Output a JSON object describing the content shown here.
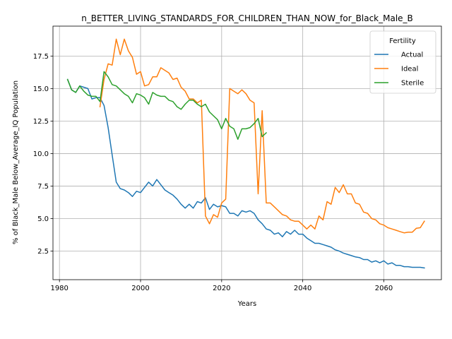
{
  "chart_data": {
    "type": "line",
    "title": "n_BETTER_LIVING_STANDARDS_FOR_CHILDREN_THAN_NOW_for_Black_Male_B",
    "xlabel": "Years",
    "ylabel": "% of Black_Male Below_Average_IQ Population",
    "xlim": [
      1978.4,
      1973.6
    ],
    "ylim": [
      0.3,
      19.8
    ],
    "x_ticks": [
      1980,
      2000,
      2020,
      2040,
      2060
    ],
    "x_tick_labels": [
      "1980",
      "2000",
      "2020",
      "2040",
      "2060"
    ],
    "y_ticks": [
      2.5,
      5.0,
      7.5,
      10.0,
      12.5,
      15.0,
      17.5
    ],
    "y_tick_labels": [
      "2.5",
      "5.0",
      "7.5",
      "10.0",
      "12.5",
      "15.0",
      "17.5"
    ],
    "grid": true,
    "legend": {
      "title": "Fertility",
      "placement": "top-right"
    },
    "series": [
      {
        "name": "Actual",
        "color": "#1f77b4",
        "x": [
          1982,
          1983,
          1984,
          1985,
          1986,
          1987,
          1988,
          1989,
          1990,
          1991,
          1992,
          1993,
          1994,
          1995,
          1996,
          1997,
          1998,
          1999,
          2000,
          2001,
          2002,
          2003,
          2004,
          2005,
          2006,
          2007,
          2008,
          2009,
          2010,
          2011,
          2012,
          2013,
          2014,
          2015,
          2016,
          2017,
          2018,
          2019,
          2020,
          2021,
          2022,
          2023,
          2024,
          2025,
          2026,
          2027,
          2028,
          2029,
          2030,
          2031,
          2032,
          2033,
          2034,
          2035,
          2036,
          2037,
          2038,
          2039,
          2040,
          2041,
          2042,
          2043,
          2044,
          2045,
          2046,
          2047,
          2048,
          2049,
          2050,
          2051,
          2052,
          2053,
          2054,
          2055,
          2056,
          2057,
          2058,
          2059,
          2060,
          2061,
          2062,
          2063,
          2064,
          2065,
          2066,
          2067,
          2068,
          2069,
          2070
        ],
        "y": [
          15.7,
          14.9,
          14.7,
          15.2,
          15.1,
          15.0,
          14.2,
          14.3,
          14.3,
          13.7,
          12.0,
          9.9,
          7.8,
          7.3,
          7.2,
          7.0,
          6.7,
          7.1,
          7.0,
          7.4,
          7.8,
          7.5,
          8.0,
          7.6,
          7.2,
          7.0,
          6.8,
          6.5,
          6.1,
          5.8,
          6.1,
          5.8,
          6.3,
          6.2,
          6.6,
          5.7,
          6.1,
          5.9,
          6.0,
          5.9,
          5.4,
          5.4,
          5.2,
          5.6,
          5.5,
          5.6,
          5.4,
          4.9,
          4.6,
          4.2,
          4.1,
          3.8,
          3.9,
          3.6,
          4.0,
          3.8,
          4.1,
          3.8,
          3.8,
          3.5,
          3.3,
          3.1,
          3.1,
          3.0,
          2.9,
          2.8,
          2.6,
          2.5,
          2.35,
          2.25,
          2.15,
          2.05,
          2.0,
          1.85,
          1.85,
          1.65,
          1.75,
          1.6,
          1.75,
          1.5,
          1.6,
          1.4,
          1.4,
          1.3,
          1.3,
          1.25,
          1.25,
          1.25,
          1.2
        ]
      },
      {
        "name": "Ideal",
        "color": "#ff7f0e",
        "x": [
          1990,
          1991,
          1992,
          1993,
          1994,
          1995,
          1996,
          1997,
          1998,
          1999,
          2000,
          2001,
          2002,
          2003,
          2004,
          2005,
          2006,
          2007,
          2008,
          2009,
          2010,
          2011,
          2012,
          2013,
          2014,
          2015,
          2016,
          2017,
          2018,
          2019,
          2020,
          2021,
          2022,
          2023,
          2024,
          2025,
          2026,
          2027,
          2028,
          2029,
          2030,
          2031,
          2032,
          2033,
          2034,
          2035,
          2036,
          2037,
          2038,
          2039,
          2040,
          2041,
          2042,
          2043,
          2044,
          2045,
          2046,
          2047,
          2048,
          2049,
          2050,
          2051,
          2052,
          2053,
          2054,
          2055,
          2056,
          2057,
          2058,
          2059,
          2060,
          2061,
          2062,
          2063,
          2064,
          2065,
          2066,
          2067,
          2068,
          2069,
          2070
        ],
        "y": [
          13.6,
          15.7,
          16.9,
          16.8,
          18.8,
          17.6,
          18.8,
          17.9,
          17.4,
          16.1,
          16.3,
          15.2,
          15.3,
          15.9,
          15.9,
          16.6,
          16.4,
          16.2,
          15.7,
          15.8,
          15.1,
          14.8,
          14.2,
          14.2,
          13.9,
          14.1,
          5.2,
          4.6,
          5.3,
          5.1,
          6.2,
          6.5,
          15.0,
          14.8,
          14.6,
          14.9,
          14.6,
          14.1,
          13.9,
          6.9,
          13.3,
          6.2,
          6.2,
          5.9,
          5.6,
          5.3,
          5.2,
          4.9,
          4.8,
          4.8,
          4.5,
          4.2,
          4.5,
          4.2,
          5.2,
          4.9,
          6.3,
          6.1,
          7.4,
          7.0,
          7.6,
          6.9,
          6.9,
          6.2,
          6.1,
          5.5,
          5.4,
          5.0,
          4.9,
          4.6,
          4.5,
          4.3,
          4.2,
          4.1,
          4.0,
          3.9,
          3.95,
          3.95,
          4.25,
          4.3,
          4.8
        ]
      },
      {
        "name": "Sterile",
        "color": "#2ca02c",
        "x": [
          1982,
          1983,
          1984,
          1985,
          1986,
          1987,
          1988,
          1989,
          1990,
          1991,
          1992,
          1993,
          1994,
          1995,
          1996,
          1997,
          1998,
          1999,
          2000,
          2001,
          2002,
          2003,
          2004,
          2005,
          2006,
          2007,
          2008,
          2009,
          2010,
          2011,
          2012,
          2013,
          2014,
          2015,
          2016,
          2017,
          2018,
          2019,
          2020,
          2021,
          2022,
          2023,
          2024,
          2025,
          2026,
          2027,
          2028,
          2029,
          2030,
          2031
        ],
        "y": [
          15.7,
          14.9,
          14.7,
          15.2,
          14.8,
          14.5,
          14.4,
          14.4,
          14.0,
          16.3,
          15.9,
          15.3,
          15.2,
          14.9,
          14.6,
          14.4,
          13.9,
          14.6,
          14.5,
          14.3,
          13.8,
          14.7,
          14.5,
          14.4,
          14.4,
          14.1,
          14.0,
          13.6,
          13.4,
          13.8,
          14.1,
          14.1,
          13.8,
          13.6,
          13.8,
          13.2,
          12.9,
          12.6,
          11.9,
          12.7,
          12.1,
          11.9,
          11.1,
          11.9,
          11.9,
          12.0,
          12.3,
          12.7,
          11.3,
          11.6
        ]
      }
    ]
  }
}
